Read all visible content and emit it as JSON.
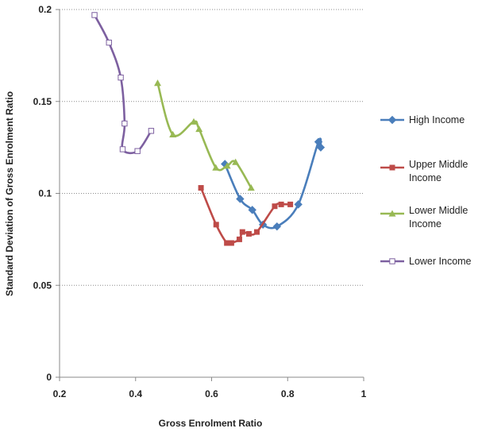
{
  "chart_data": {
    "type": "scatter",
    "title": "",
    "xlabel": "Gross Enrolment Ratio",
    "ylabel": "Standard Deviation of Gross Enrolment Ratio",
    "xlim": [
      0.2,
      1.0
    ],
    "ylim": [
      0,
      0.2
    ],
    "x_ticks": [
      "0.2",
      "0.4",
      "0.6",
      "0.8",
      "1"
    ],
    "y_ticks": [
      "0",
      "0.05",
      "0.1",
      "0.15",
      "0.2"
    ],
    "grid": "horizontal dotted",
    "legend_position": "right",
    "series": [
      {
        "name": "High Income",
        "color": "#4a7ebb",
        "marker": "diamond",
        "points": [
          [
            0.635,
            0.116
          ],
          [
            0.675,
            0.097
          ],
          [
            0.707,
            0.091
          ],
          [
            0.735,
            0.083
          ],
          [
            0.772,
            0.082
          ],
          [
            0.828,
            0.094
          ],
          [
            0.881,
            0.128
          ],
          [
            0.887,
            0.125
          ]
        ]
      },
      {
        "name": "Upper Middle Income",
        "legend_lines": [
          "Upper Middle",
          "Income"
        ],
        "color": "#be4b48",
        "marker": "square",
        "points": [
          [
            0.572,
            0.103
          ],
          [
            0.612,
            0.083
          ],
          [
            0.64,
            0.073
          ],
          [
            0.652,
            0.073
          ],
          [
            0.673,
            0.075
          ],
          [
            0.681,
            0.079
          ],
          [
            0.698,
            0.078
          ],
          [
            0.719,
            0.079
          ],
          [
            0.766,
            0.093
          ],
          [
            0.783,
            0.094
          ],
          [
            0.807,
            0.094
          ]
        ]
      },
      {
        "name": "Lower Middle Income",
        "legend_lines": [
          "Lower Middle",
          "Income"
        ],
        "color": "#98b954",
        "marker": "triangle",
        "points": [
          [
            0.458,
            0.16
          ],
          [
            0.498,
            0.132
          ],
          [
            0.553,
            0.139
          ],
          [
            0.567,
            0.135
          ],
          [
            0.611,
            0.114
          ],
          [
            0.641,
            0.115
          ],
          [
            0.663,
            0.117
          ],
          [
            0.704,
            0.103
          ]
        ]
      },
      {
        "name": "Lower Income",
        "color": "#7d60a0",
        "marker": "open-square",
        "points": [
          [
            0.292,
            0.197
          ],
          [
            0.33,
            0.182
          ],
          [
            0.361,
            0.163
          ],
          [
            0.371,
            0.138
          ],
          [
            0.366,
            0.124
          ],
          [
            0.405,
            0.123
          ],
          [
            0.441,
            0.134
          ]
        ]
      }
    ]
  }
}
